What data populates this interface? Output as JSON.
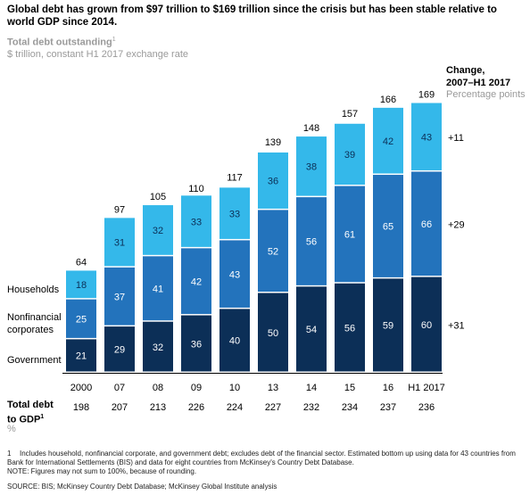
{
  "title": "Global debt has grown from $97 trillion to $169 trillion since the crisis but has been stable relative to world GDP since 2014.",
  "subtitle": "Total debt outstanding",
  "subtitle_footnote_marker": "1",
  "unit_label": "$ trillion, constant H1 2017 exchange rate",
  "change_header_line1": "Change,",
  "change_header_line2": "2007–H1 2017",
  "change_unit": "Percentage points",
  "row_labels": {
    "households": "Households",
    "nonfinancial_line1": "Nonfinancial",
    "nonfinancial_line2": "corporates",
    "government": "Government"
  },
  "gdp_label_line1": "Total debt",
  "gdp_label_line2": "to GDP",
  "gdp_footnote_marker": "1",
  "gdp_unit": "%",
  "footnote_number": "1",
  "footnote_text": "Includes household, nonfinancial corporate, and government debt; excludes debt of the financial sector. Estimated bottom up using data for 43 countries from Bank for International Settlements (BIS) and data for eight countries from McKinsey's Country Debt Database.",
  "note": "NOTE: Figures may not sum to 100%, because of rounding.",
  "source": "SOURCE:  BIS; McKinsey Country Debt Database; McKinsey Global Institute analysis",
  "colors": {
    "government": "#0c2f57",
    "nonfinancial": "#2373bc",
    "households": "#34b8ea"
  },
  "chart_data": {
    "type": "bar",
    "stacked": true,
    "categories": [
      "2000",
      "07",
      "08",
      "09",
      "10",
      "13",
      "14",
      "15",
      "16",
      "H1 2017"
    ],
    "series": [
      {
        "name": "Government",
        "values": [
          21,
          29,
          32,
          36,
          40,
          50,
          54,
          56,
          59,
          60
        ],
        "change": "+31"
      },
      {
        "name": "Nonfinancial corporates",
        "values": [
          25,
          37,
          41,
          42,
          43,
          52,
          56,
          61,
          65,
          66
        ],
        "change": "+29"
      },
      {
        "name": "Households",
        "values": [
          18,
          31,
          32,
          33,
          33,
          36,
          38,
          39,
          42,
          43
        ],
        "change": "+11"
      }
    ],
    "totals": [
      64,
      97,
      105,
      110,
      117,
      139,
      148,
      157,
      166,
      169
    ],
    "debt_to_gdp": [
      198,
      207,
      213,
      226,
      224,
      227,
      232,
      234,
      237,
      236
    ]
  }
}
